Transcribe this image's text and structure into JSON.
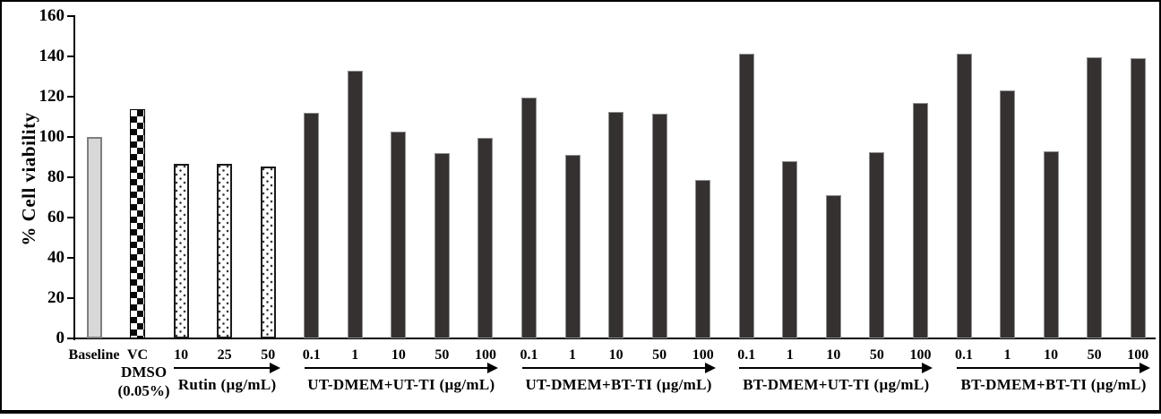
{
  "chart_data": {
    "type": "bar",
    "title": "",
    "ylabel": "% Cell viability",
    "xlabel": "",
    "ylim": [
      0,
      160
    ],
    "yticks": [
      0,
      20,
      40,
      60,
      80,
      100,
      120,
      140,
      160
    ],
    "grid": false,
    "legend": "none",
    "bars": [
      {
        "label": "Baseline",
        "value": 100,
        "pattern": "light"
      },
      {
        "label": "VC",
        "value": 114,
        "pattern": "checker"
      },
      {
        "label": "10",
        "value": 86.5,
        "pattern": "dotted"
      },
      {
        "label": "25",
        "value": 86.5,
        "pattern": "dotted"
      },
      {
        "label": "50",
        "value": 85.5,
        "pattern": "dotted"
      },
      {
        "label": "0.1",
        "value": 112,
        "pattern": "dark"
      },
      {
        "label": "1",
        "value": 133,
        "pattern": "dark"
      },
      {
        "label": "10",
        "value": 102.5,
        "pattern": "dark"
      },
      {
        "label": "50",
        "value": 92,
        "pattern": "dark"
      },
      {
        "label": "100",
        "value": 99.5,
        "pattern": "dark"
      },
      {
        "label": "0.1",
        "value": 119.5,
        "pattern": "dark"
      },
      {
        "label": "1",
        "value": 91,
        "pattern": "dark"
      },
      {
        "label": "10",
        "value": 112.5,
        "pattern": "dark"
      },
      {
        "label": "50",
        "value": 111.5,
        "pattern": "dark"
      },
      {
        "label": "100",
        "value": 78.5,
        "pattern": "dark"
      },
      {
        "label": "0.1",
        "value": 141.5,
        "pattern": "dark"
      },
      {
        "label": "1",
        "value": 88,
        "pattern": "dark"
      },
      {
        "label": "10",
        "value": 71,
        "pattern": "dark"
      },
      {
        "label": "50",
        "value": 92.5,
        "pattern": "dark"
      },
      {
        "label": "100",
        "value": 117,
        "pattern": "dark"
      },
      {
        "label": "0.1",
        "value": 141.5,
        "pattern": "dark"
      },
      {
        "label": "1",
        "value": 123,
        "pattern": "dark"
      },
      {
        "label": "10",
        "value": 93,
        "pattern": "dark"
      },
      {
        "label": "50",
        "value": 139.5,
        "pattern": "dark"
      },
      {
        "label": "100",
        "value": 139,
        "pattern": "dark"
      }
    ],
    "sublabels": [
      {
        "bar_index": 1,
        "lines": [
          "DMSO",
          "(0.05%)"
        ]
      }
    ],
    "groups": [
      {
        "label": "Rutin (µg/mL)",
        "from": 2,
        "to": 4
      },
      {
        "label": "UT-DMEM+UT-TI  (µg/mL)",
        "from": 5,
        "to": 9
      },
      {
        "label": "UT-DMEM+BT-TI  (µg/mL)",
        "from": 10,
        "to": 14
      },
      {
        "label": "BT-DMEM+UT-TI  (µg/mL)",
        "from": 15,
        "to": 19
      },
      {
        "label": "BT-DMEM+BT-TI  (µg/mL)",
        "from": 20,
        "to": 24
      }
    ],
    "colors": {
      "dark_bar": "#363131",
      "light_bar": "#d8d8d8",
      "checker_black": "#0a0a0a",
      "dot_gray": "#3a3a3a",
      "axis": "#000000",
      "background": "#ffffff",
      "frame_border": "#000000"
    }
  }
}
